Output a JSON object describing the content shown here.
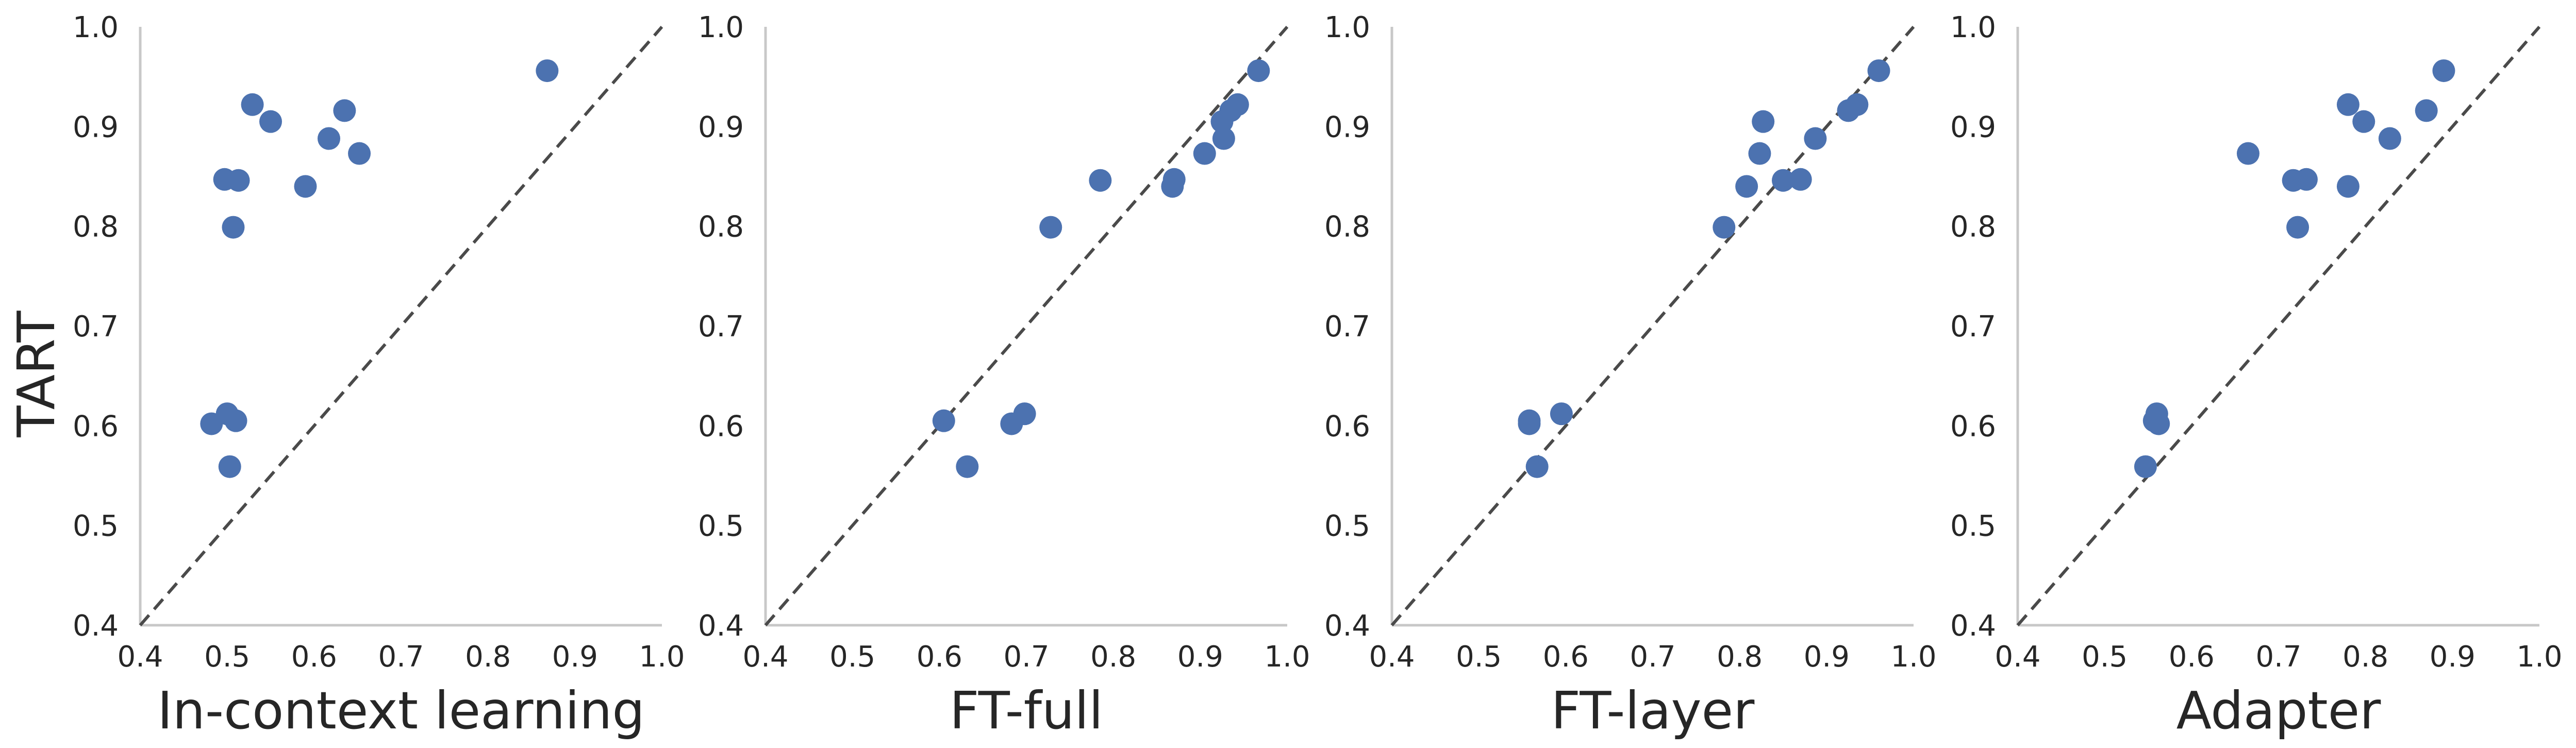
{
  "figure": {
    "ylabel": "TART"
  },
  "chart_data": [
    {
      "type": "scatter",
      "xlabel": "In-context learning",
      "ylabel": "TART",
      "xlim": [
        0.4,
        1.0
      ],
      "ylim": [
        0.4,
        1.0
      ],
      "xticks": [
        "0.4",
        "0.5",
        "0.6",
        "0.7",
        "0.8",
        "0.9",
        "1.0"
      ],
      "yticks": [
        "0.4",
        "0.5",
        "0.6",
        "0.7",
        "0.8",
        "0.9",
        "1.0"
      ],
      "diagonal": true,
      "grid": false,
      "color": "#4c72b0",
      "points": [
        {
          "x": 0.482,
          "y": 0.602
        },
        {
          "x": 0.497,
          "y": 0.847
        },
        {
          "x": 0.5,
          "y": 0.612
        },
        {
          "x": 0.503,
          "y": 0.559
        },
        {
          "x": 0.507,
          "y": 0.799
        },
        {
          "x": 0.51,
          "y": 0.605
        },
        {
          "x": 0.513,
          "y": 0.846
        },
        {
          "x": 0.529,
          "y": 0.922
        },
        {
          "x": 0.55,
          "y": 0.905
        },
        {
          "x": 0.59,
          "y": 0.84
        },
        {
          "x": 0.617,
          "y": 0.888
        },
        {
          "x": 0.635,
          "y": 0.916
        },
        {
          "x": 0.652,
          "y": 0.873
        },
        {
          "x": 0.868,
          "y": 0.956
        }
      ]
    },
    {
      "type": "scatter",
      "xlabel": "FT-full",
      "ylabel": "",
      "xlim": [
        0.4,
        1.0
      ],
      "ylim": [
        0.4,
        1.0
      ],
      "xticks": [
        "0.4",
        "0.5",
        "0.6",
        "0.7",
        "0.8",
        "0.9",
        "1.0"
      ],
      "yticks": [
        "0.4",
        "0.5",
        "0.6",
        "0.7",
        "0.8",
        "0.9",
        "1.0"
      ],
      "diagonal": true,
      "grid": false,
      "color": "#4c72b0",
      "points": [
        {
          "x": 0.605,
          "y": 0.605
        },
        {
          "x": 0.632,
          "y": 0.559
        },
        {
          "x": 0.683,
          "y": 0.602
        },
        {
          "x": 0.698,
          "y": 0.612
        },
        {
          "x": 0.728,
          "y": 0.799
        },
        {
          "x": 0.785,
          "y": 0.846
        },
        {
          "x": 0.868,
          "y": 0.84
        },
        {
          "x": 0.87,
          "y": 0.847
        },
        {
          "x": 0.905,
          "y": 0.873
        },
        {
          "x": 0.925,
          "y": 0.905
        },
        {
          "x": 0.927,
          "y": 0.888
        },
        {
          "x": 0.935,
          "y": 0.916
        },
        {
          "x": 0.943,
          "y": 0.922
        },
        {
          "x": 0.967,
          "y": 0.956
        }
      ]
    },
    {
      "type": "scatter",
      "xlabel": "FT-layer",
      "ylabel": "",
      "xlim": [
        0.4,
        1.0
      ],
      "ylim": [
        0.4,
        1.0
      ],
      "xticks": [
        "0.4",
        "0.5",
        "0.6",
        "0.7",
        "0.8",
        "0.9",
        "1.0"
      ],
      "yticks": [
        "0.4",
        "0.5",
        "0.6",
        "0.7",
        "0.8",
        "0.9",
        "1.0"
      ],
      "diagonal": true,
      "grid": false,
      "color": "#4c72b0",
      "points": [
        {
          "x": 0.558,
          "y": 0.602
        },
        {
          "x": 0.558,
          "y": 0.605
        },
        {
          "x": 0.567,
          "y": 0.559
        },
        {
          "x": 0.595,
          "y": 0.612
        },
        {
          "x": 0.782,
          "y": 0.799
        },
        {
          "x": 0.808,
          "y": 0.84
        },
        {
          "x": 0.823,
          "y": 0.873
        },
        {
          "x": 0.827,
          "y": 0.905
        },
        {
          "x": 0.85,
          "y": 0.846
        },
        {
          "x": 0.87,
          "y": 0.847
        },
        {
          "x": 0.887,
          "y": 0.888
        },
        {
          "x": 0.925,
          "y": 0.916
        },
        {
          "x": 0.935,
          "y": 0.922
        },
        {
          "x": 0.96,
          "y": 0.956
        }
      ]
    },
    {
      "type": "scatter",
      "xlabel": "Adapter",
      "ylabel": "",
      "xlim": [
        0.4,
        1.0
      ],
      "ylim": [
        0.4,
        1.0
      ],
      "xticks": [
        "0.4",
        "0.5",
        "0.6",
        "0.7",
        "0.8",
        "0.9",
        "1.0"
      ],
      "yticks": [
        "0.4",
        "0.5",
        "0.6",
        "0.7",
        "0.8",
        "0.9",
        "1.0"
      ],
      "diagonal": true,
      "grid": false,
      "color": "#4c72b0",
      "points": [
        {
          "x": 0.547,
          "y": 0.559
        },
        {
          "x": 0.557,
          "y": 0.605
        },
        {
          "x": 0.56,
          "y": 0.612
        },
        {
          "x": 0.562,
          "y": 0.602
        },
        {
          "x": 0.665,
          "y": 0.873
        },
        {
          "x": 0.717,
          "y": 0.846
        },
        {
          "x": 0.722,
          "y": 0.799
        },
        {
          "x": 0.732,
          "y": 0.847
        },
        {
          "x": 0.78,
          "y": 0.922
        },
        {
          "x": 0.78,
          "y": 0.84
        },
        {
          "x": 0.798,
          "y": 0.905
        },
        {
          "x": 0.828,
          "y": 0.888
        },
        {
          "x": 0.87,
          "y": 0.916
        },
        {
          "x": 0.89,
          "y": 0.956
        }
      ]
    }
  ]
}
